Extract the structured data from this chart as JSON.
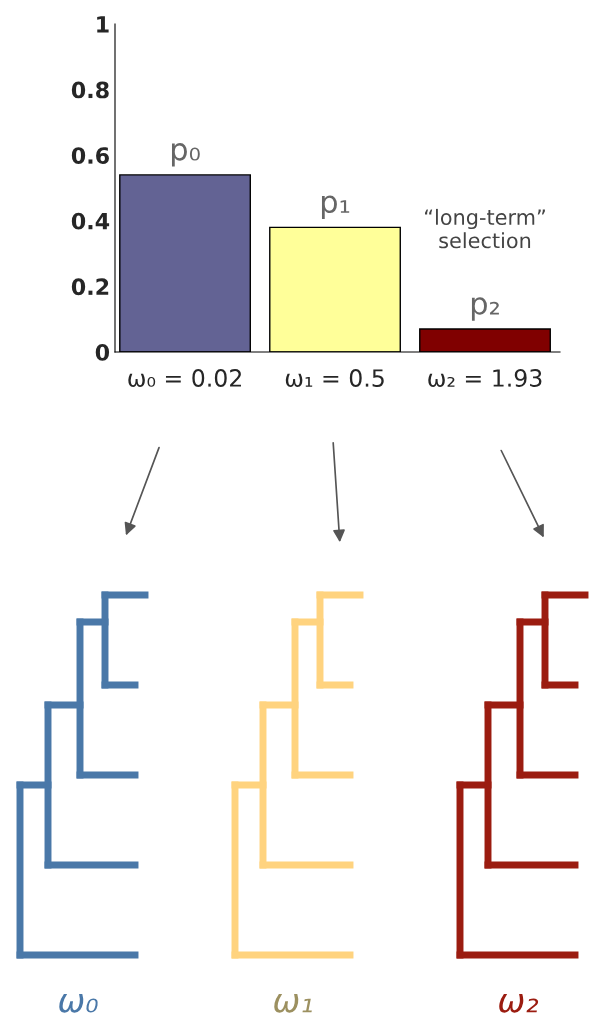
{
  "chart_data": {
    "type": "bar",
    "categories": [
      "ω₀ = 0.02",
      "ω₁ = 0.5",
      "ω₂ = 1.93"
    ],
    "values": [
      0.54,
      0.38,
      0.07
    ],
    "colors": [
      "#636394",
      "#ffff99",
      "#800000"
    ],
    "value_labels": [
      "p₀",
      "p₁",
      "p₂"
    ],
    "ylim": [
      0,
      1
    ],
    "yticks": [
      0,
      0.2,
      0.4,
      0.6,
      0.8,
      1
    ],
    "grid": false,
    "legend": false,
    "annotations": [
      "“long-term”\nselection",
      "ω₀",
      "ω₁",
      "ω₂"
    ]
  }
}
